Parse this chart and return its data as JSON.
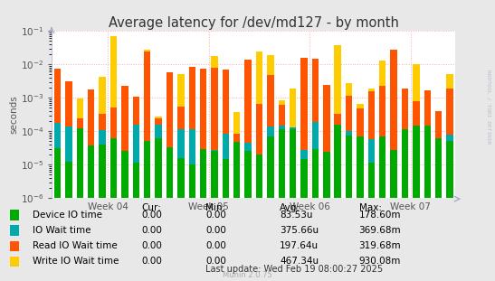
{
  "title": "Average latency for /dev/md127 - by month",
  "ylabel": "seconds",
  "background_color": "#e8e8e8",
  "plot_background_color": "#ffffff",
  "grid_color": "#ffaaaa",
  "ylim_min": 1e-06,
  "ylim_max": 0.1,
  "week_labels": [
    "Week 04",
    "Week 05",
    "Week 06",
    "Week 07"
  ],
  "legend_entries": [
    {
      "label": "Device IO time",
      "color": "#00aa00"
    },
    {
      "label": "IO Wait time",
      "color": "#00aaaa"
    },
    {
      "label": "Read IO Wait time",
      "color": "#ff5500"
    },
    {
      "label": "Write IO Wait time",
      "color": "#ffcc00"
    }
  ],
  "table_headers": [
    "Cur:",
    "Min:",
    "Avg:",
    "Max:"
  ],
  "table_data": [
    [
      "0.00",
      "0.00",
      "83.53u",
      "178.60m"
    ],
    [
      "0.00",
      "0.00",
      "375.66u",
      "369.68m"
    ],
    [
      "0.00",
      "0.00",
      "197.64u",
      "319.68m"
    ],
    [
      "0.00",
      "0.00",
      "467.34u",
      "930.08m"
    ]
  ],
  "last_update": "Last update: Wed Feb 19 08:00:27 2025",
  "munin_version": "Munin 2.0.75",
  "rrdtool_label": "RRDTOOL / TOBI OETIKER",
  "title_fontsize": 10.5,
  "axis_fontsize": 7.5,
  "table_fontsize": 7.5,
  "num_groups": 36,
  "seed": 42,
  "colors": [
    "#00aa00",
    "#00aaaa",
    "#ff5500",
    "#ffcc00"
  ]
}
